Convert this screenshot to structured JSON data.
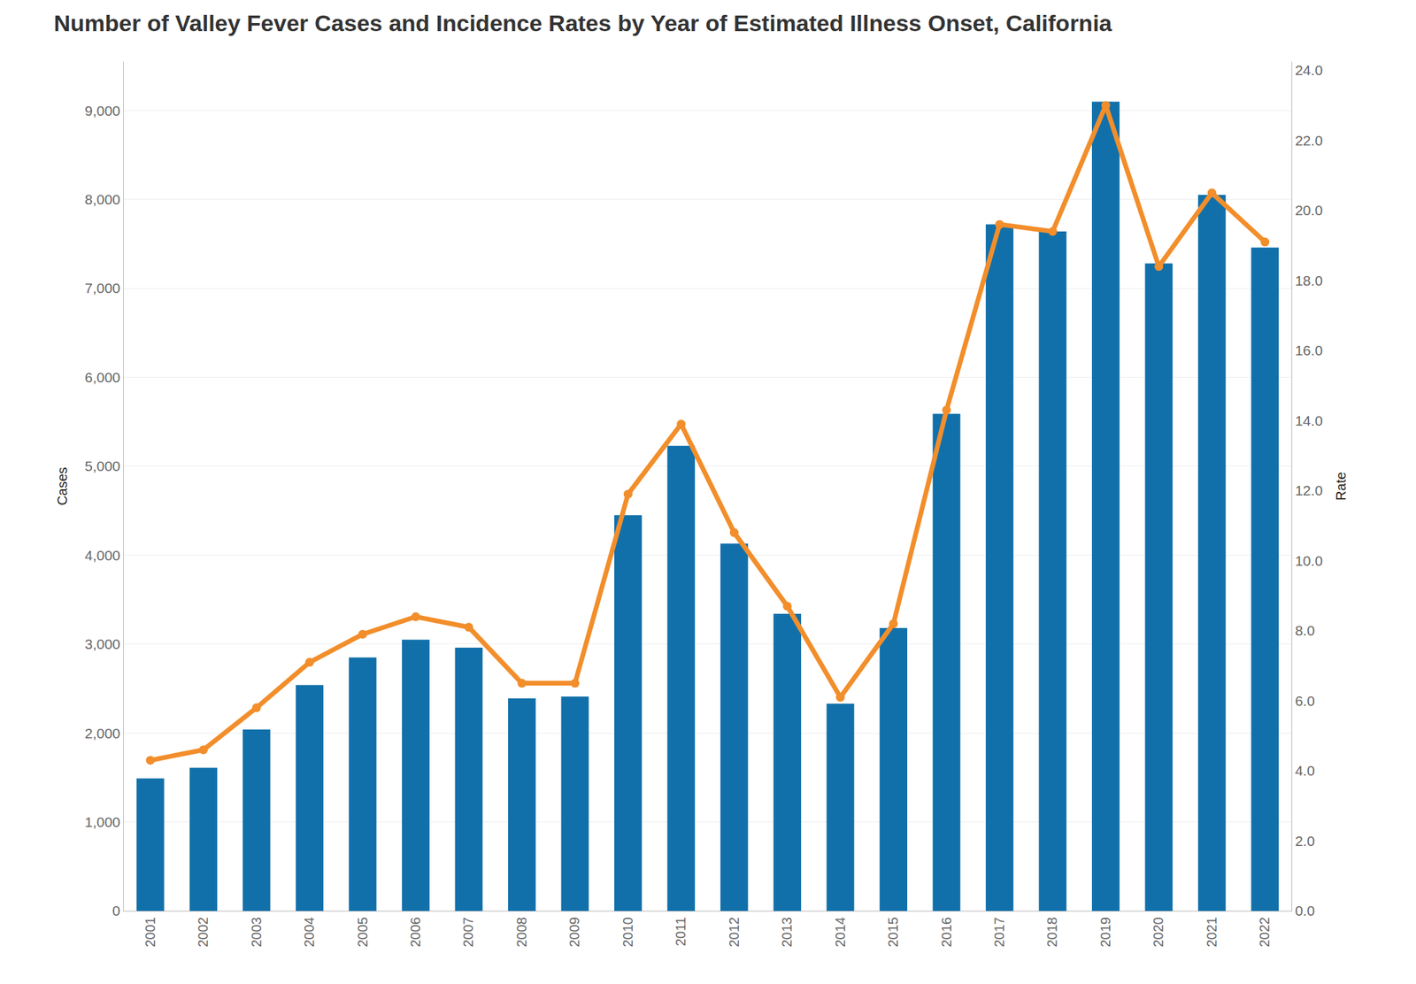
{
  "chart_data": {
    "type": "bar",
    "title": "Number of Valley Fever Cases and Incidence Rates by Year of Estimated Illness Onset, California",
    "x_label": null,
    "y_label": "Cases",
    "y2_label": "Rate",
    "categories": [
      "2001",
      "2002",
      "2003",
      "2004",
      "2005",
      "2006",
      "2007",
      "2008",
      "2009",
      "2010",
      "2011",
      "2012",
      "2013",
      "2014",
      "2015",
      "2016",
      "2017",
      "2018",
      "2019",
      "2020",
      "2021",
      "2022"
    ],
    "series": [
      {
        "type": "bar",
        "color": "#1170aa",
        "values": [
          1490,
          1610,
          2040,
          2540,
          2850,
          3050,
          2960,
          2390,
          2410,
          4450,
          5230,
          4130,
          3340,
          2330,
          3180,
          5590,
          7720,
          7640,
          9100,
          7280,
          8050,
          7460
        ]
      },
      {
        "type": "line",
        "axis": "y2",
        "color": "#f28e2b",
        "marker": "circle",
        "values": [
          4.3,
          4.6,
          5.8,
          7.1,
          7.9,
          8.4,
          8.1,
          6.5,
          6.5,
          11.9,
          13.9,
          10.8,
          8.7,
          6.1,
          8.2,
          14.3,
          19.6,
          19.4,
          23.0,
          18.4,
          20.5,
          19.1
        ]
      }
    ],
    "ylim": [
      0,
      9550
    ],
    "yticks": [
      0,
      {
        "value": 1000,
        "label": "1,000"
      },
      {
        "value": 2000,
        "label": "2,000"
      },
      {
        "value": 3000,
        "label": "3,000"
      },
      {
        "value": 4000,
        "label": "4,000"
      },
      {
        "value": 5000,
        "label": "5,000"
      },
      {
        "value": 6000,
        "label": "6,000"
      },
      {
        "value": 7000,
        "label": "7,000"
      },
      {
        "value": 8000,
        "label": "8,000"
      },
      {
        "value": 9000,
        "label": "9,000"
      }
    ],
    "y2lim": [
      0,
      24.25
    ],
    "y2ticks": [
      {
        "value": 0,
        "label": "0.0"
      },
      {
        "value": 2,
        "label": "2.0"
      },
      {
        "value": 4,
        "label": "4.0"
      },
      {
        "value": 6,
        "label": "6.0"
      },
      {
        "value": 8,
        "label": "8.0"
      },
      {
        "value": 10,
        "label": "10.0"
      },
      {
        "value": 12,
        "label": "12.0"
      },
      {
        "value": 14,
        "label": "14.0"
      },
      {
        "value": 16,
        "label": "16.0"
      },
      {
        "value": 18,
        "label": "18.0"
      },
      {
        "value": 20,
        "label": "20.0"
      },
      {
        "value": 22,
        "label": "22.0"
      },
      {
        "value": 24,
        "label": "24.0"
      }
    ],
    "grid": true
  }
}
